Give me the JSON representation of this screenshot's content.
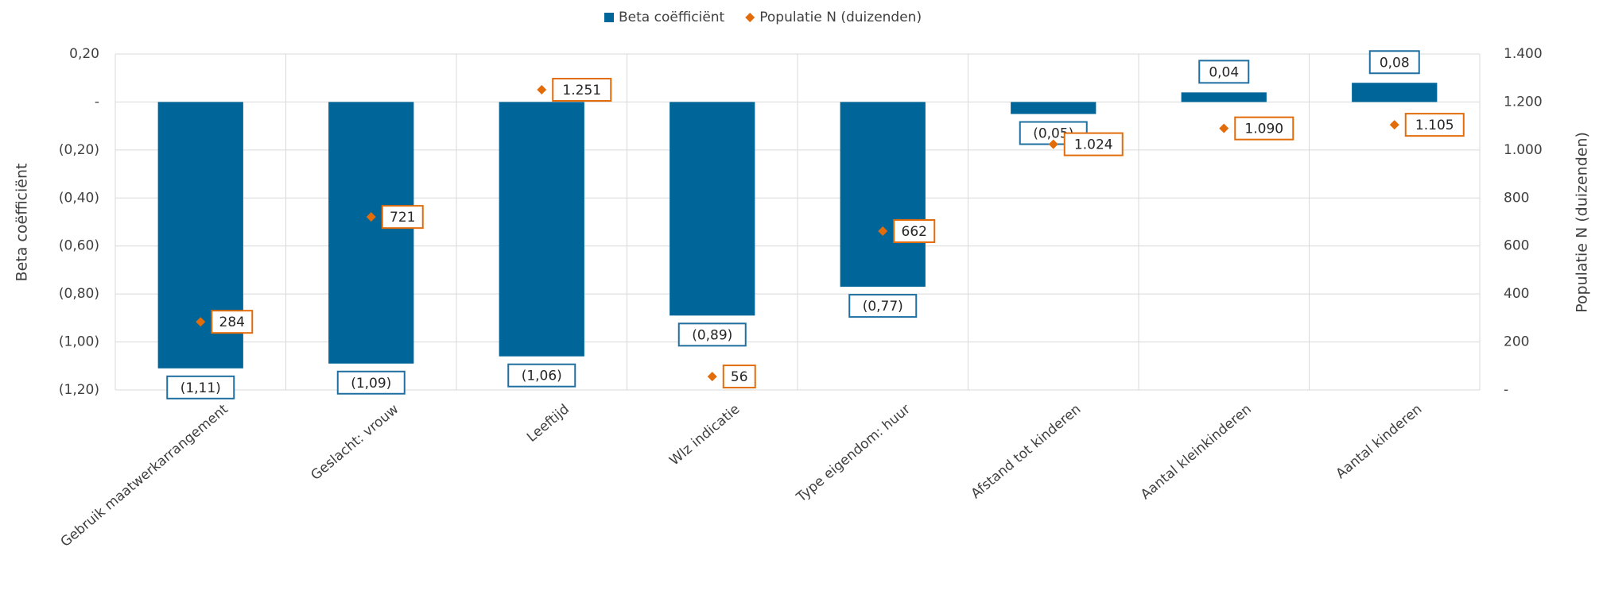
{
  "chart_data": {
    "type": "bar",
    "categories": [
      "Gebruik maatwerkarrangement",
      "Geslacht: vrouw",
      "Leeftijd",
      "Wlz indicatie",
      "Type eigendom: huur",
      "Afstand tot kinderen",
      "Aantal kleinkinderen",
      "Aantal kinderen"
    ],
    "series": [
      {
        "name": "Beta coëfficiënt",
        "type": "bar",
        "color": "#006699",
        "values": [
          -1.11,
          -1.09,
          -1.06,
          -0.89,
          -0.77,
          -0.05,
          0.04,
          0.08
        ],
        "value_labels": [
          "(1,11)",
          "(1,09)",
          "(1,06)",
          "(0,89)",
          "(0,77)",
          "(0,05)",
          "0,04",
          "0,08"
        ]
      },
      {
        "name": "Populatie N (duizenden)",
        "type": "scatter",
        "axis": "y2",
        "color": "#e36c0a",
        "values": [
          284,
          721,
          1251,
          56,
          662,
          1024,
          1090,
          1105
        ],
        "value_labels": [
          "284",
          "721",
          "1.251",
          "56",
          "662",
          "1.024",
          "1.090",
          "1.105"
        ]
      }
    ],
    "y_label": "Beta coëfficiënt",
    "y2_label": "Populatie N (duizenden)",
    "ylim": [
      -1.2,
      0.2
    ],
    "yticks": [
      {
        "value": -1.2,
        "label": "(1,20)"
      },
      {
        "value": -1.0,
        "label": "(1,00)"
      },
      {
        "value": -0.8,
        "label": "(0,80)"
      },
      {
        "value": -0.6,
        "label": "(0,60)"
      },
      {
        "value": -0.4,
        "label": "(0,40)"
      },
      {
        "value": -0.2,
        "label": "(0,20)"
      },
      {
        "value": 0,
        "label": "-"
      },
      {
        "value": 0.2,
        "label": "0,20"
      }
    ],
    "y2lim": [
      0,
      1400
    ],
    "y2ticks": [
      {
        "value": 0,
        "label": "-"
      },
      200,
      400,
      600,
      800,
      {
        "value": 1000,
        "label": "1.000"
      },
      {
        "value": 1200,
        "label": "1.200"
      },
      {
        "value": 1400,
        "label": "1.400"
      }
    ],
    "grid": true,
    "legend": "top"
  }
}
